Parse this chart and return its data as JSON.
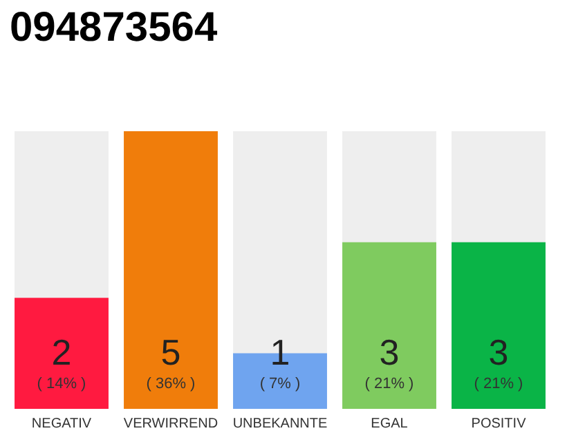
{
  "chart_data": {
    "type": "bar",
    "title": "094873564",
    "categories": [
      "NEGATIV",
      "VERWIRREND",
      "UNBEKANNTE",
      "EGAL",
      "POSITIV"
    ],
    "values": [
      2,
      5,
      1,
      3,
      3
    ],
    "colors": [
      "#ff1a40",
      "#f07d0b",
      "#6fa4ef",
      "#7fcb5f",
      "#0ab447"
    ],
    "value_labels": [
      "2\n( 14% )",
      "5\n( 36% )",
      "1\n( 7% )",
      "3\n( 21% )",
      "3\n( 21% )"
    ]
  }
}
